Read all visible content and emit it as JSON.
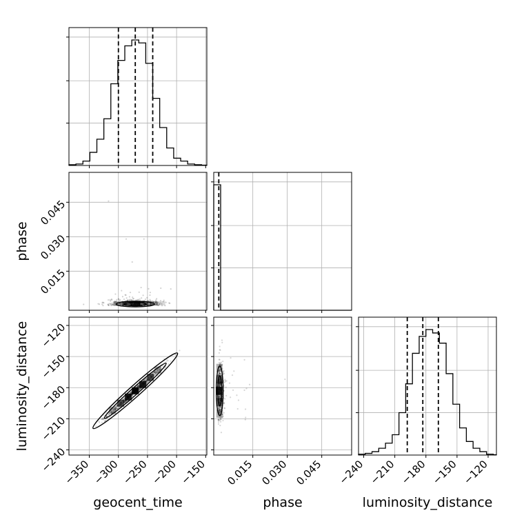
{
  "chart_data": {
    "type": "corner",
    "parameters": [
      "geocent_time",
      "phase",
      "luminosity_distance"
    ],
    "ranges": {
      "geocent_time": [
        -385,
        -148
      ],
      "phase": [
        -0.002,
        0.058
      ],
      "luminosity_distance": [
        -245,
        -112
      ]
    },
    "ticks": {
      "geocent_time": [
        -350,
        -300,
        -250,
        -200,
        -150
      ],
      "phase": [
        0.015,
        0.03,
        0.045
      ],
      "luminosity_distance": [
        -240,
        -210,
        -180,
        -150,
        -120
      ]
    },
    "tick_labels": {
      "geocent_time": [
        "−350",
        "−300",
        "−250",
        "−200",
        "−150"
      ],
      "phase": [
        "0.015",
        "0.030",
        "0.045"
      ],
      "luminosity_distance": [
        "−240",
        "−210",
        "−180",
        "−150",
        "−120"
      ]
    },
    "quantiles": {
      "geocent_time": [
        -300,
        -271,
        -241
      ],
      "phase": [
        0.0002
      ],
      "luminosity_distance": [
        -198,
        -183,
        -168
      ]
    },
    "histograms": {
      "geocent_time": {
        "edges": [
          -385,
          -373,
          -361,
          -349,
          -337,
          -325,
          -313,
          -301,
          -289,
          -277,
          -265,
          -253,
          -241,
          -229,
          -217,
          -205,
          -193,
          -181,
          -169,
          -157,
          -148
        ],
        "counts": [
          0.5,
          1,
          3,
          9,
          18,
          32,
          56,
          72,
          82,
          86,
          84,
          70,
          46,
          26,
          12,
          5,
          3,
          1,
          0.5,
          0.2
        ]
      },
      "phase": {
        "edges": [
          -0.002,
          0.001,
          0.004,
          0.058
        ],
        "counts": [
          1,
          0,
          0
        ]
      },
      "luminosity_distance": {
        "edges": [
          -245,
          -238.5,
          -232,
          -225.5,
          -219,
          -212.5,
          -206,
          -199.5,
          -193,
          -186.5,
          -180,
          -173.5,
          -167,
          -160.5,
          -154,
          -147.5,
          -141,
          -134.5,
          -128,
          -121.5,
          -115,
          -112
        ],
        "counts": [
          0.5,
          1,
          2,
          4,
          7,
          12,
          25,
          42,
          60,
          70,
          74,
          72,
          66,
          48,
          30,
          16,
          8,
          4,
          2,
          0.5,
          0.2
        ]
      }
    },
    "correlations": {
      "geocent_time_vs_luminosity_distance": 0.99,
      "geocent_time_vs_phase": 0,
      "phase_vs_luminosity_distance": 0
    },
    "grid": true,
    "colors": {
      "ink": "#000000",
      "grid": "#b0b0b0",
      "scatter": "#000000"
    }
  }
}
